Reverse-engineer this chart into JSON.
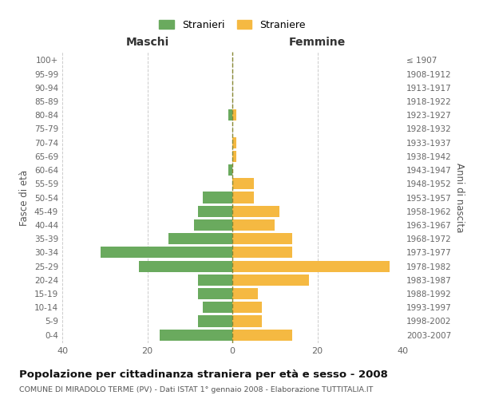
{
  "age_groups": [
    "0-4",
    "5-9",
    "10-14",
    "15-19",
    "20-24",
    "25-29",
    "30-34",
    "35-39",
    "40-44",
    "45-49",
    "50-54",
    "55-59",
    "60-64",
    "65-69",
    "70-74",
    "75-79",
    "80-84",
    "85-89",
    "90-94",
    "95-99",
    "100+"
  ],
  "birth_years": [
    "2003-2007",
    "1998-2002",
    "1993-1997",
    "1988-1992",
    "1983-1987",
    "1978-1982",
    "1973-1977",
    "1968-1972",
    "1963-1967",
    "1958-1962",
    "1953-1957",
    "1948-1952",
    "1943-1947",
    "1938-1942",
    "1933-1937",
    "1928-1932",
    "1923-1927",
    "1918-1922",
    "1913-1917",
    "1908-1912",
    "≤ 1907"
  ],
  "males": [
    17,
    8,
    7,
    8,
    8,
    22,
    31,
    15,
    9,
    8,
    7,
    0,
    1,
    0,
    0,
    0,
    1,
    0,
    0,
    0,
    0
  ],
  "females": [
    14,
    7,
    7,
    6,
    18,
    37,
    14,
    14,
    10,
    11,
    5,
    5,
    0,
    1,
    1,
    0,
    1,
    0,
    0,
    0,
    0
  ],
  "male_color": "#6aaa5e",
  "female_color": "#f5b942",
  "background_color": "#ffffff",
  "grid_color": "#cccccc",
  "title": "Popolazione per cittadinanza straniera per età e sesso - 2008",
  "subtitle": "COMUNE DI MIRADOLO TERME (PV) - Dati ISTAT 1° gennaio 2008 - Elaborazione TUTTITALIA.IT",
  "xlabel_left": "Maschi",
  "xlabel_right": "Femmine",
  "ylabel_left": "Fasce di età",
  "ylabel_right": "Anni di nascita",
  "legend_male": "Stranieri",
  "legend_female": "Straniere",
  "xlim": 40,
  "bar_height": 0.82
}
